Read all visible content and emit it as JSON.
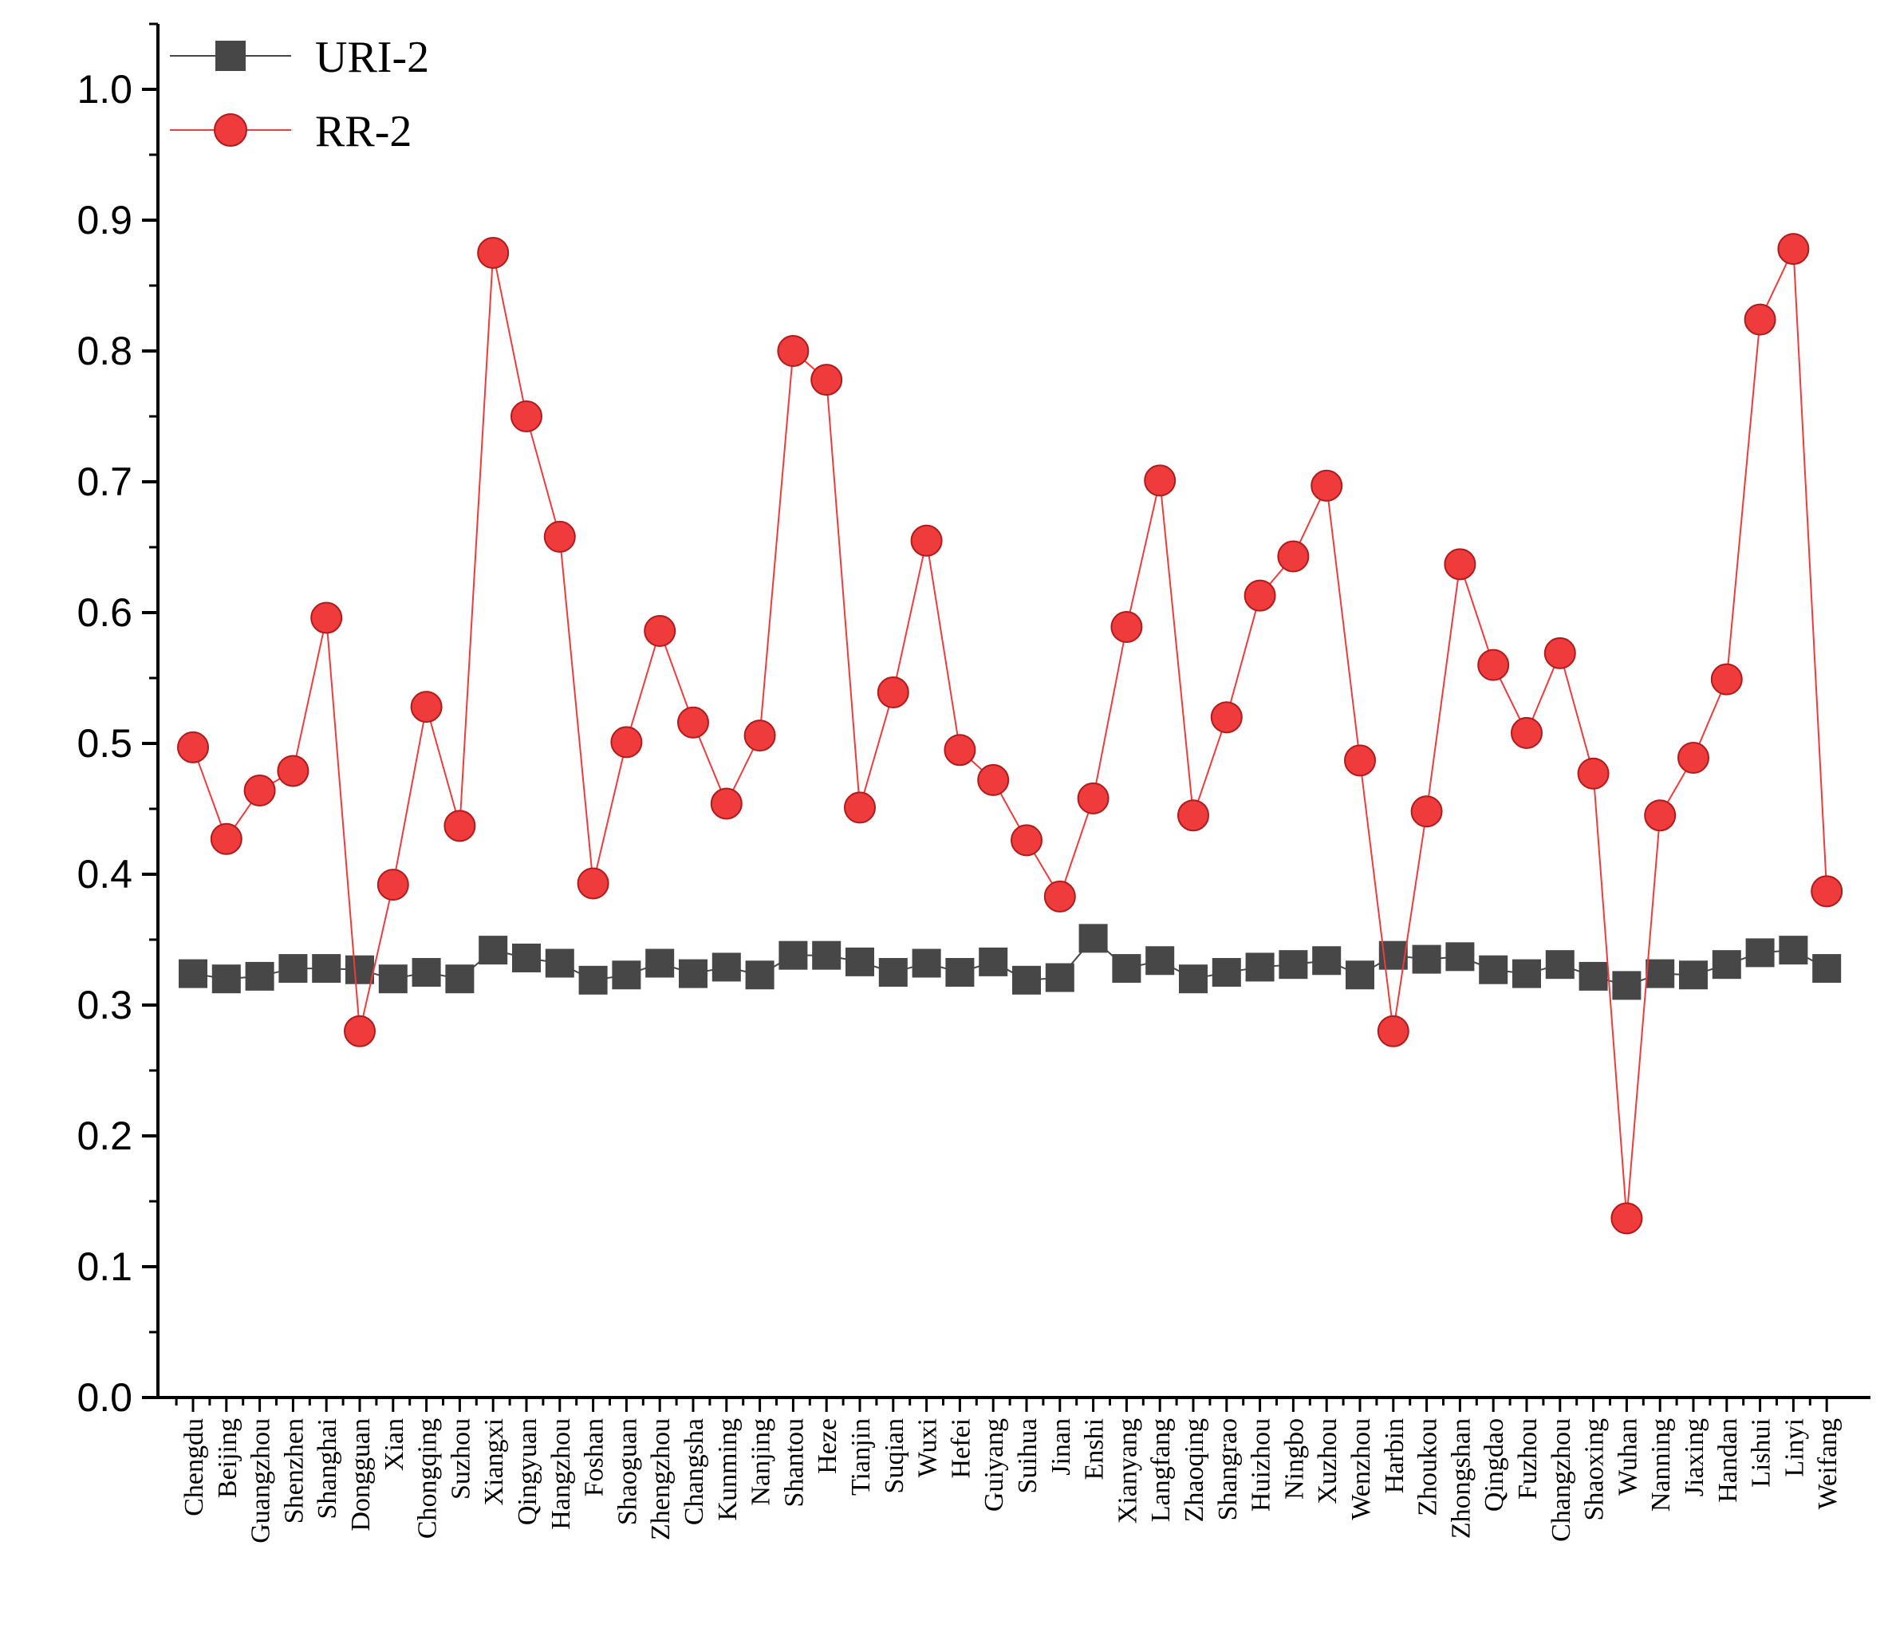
{
  "chart_data": {
    "type": "line",
    "title": "",
    "xlabel": "",
    "ylabel": "",
    "ylim": [
      0,
      1.05
    ],
    "yticks": [
      "0.0",
      "0.1",
      "0.2",
      "0.3",
      "0.4",
      "0.5",
      "0.6",
      "0.7",
      "0.8",
      "0.9",
      "1.0"
    ],
    "legend_position": "top-left",
    "categories": [
      "Chengdu",
      "Beijing",
      "Guangzhou",
      "Shenzhen",
      "Shanghai",
      "Dongguan",
      "Xian",
      "Chongqing",
      "Suzhou",
      "Xiangxi",
      "Qingyuan",
      "Hangzhou",
      "Foshan",
      "Shaoguan",
      "Zhengzhou",
      "Changsha",
      "Kunming",
      "Nanjing",
      "Shantou",
      "Heze",
      "Tianjin",
      "Suqian",
      "Wuxi",
      "Hefei",
      "Guiyang",
      "Suihua",
      "Jinan",
      "Enshi",
      "Xianyang",
      "Langfang",
      "Zhaoqing",
      "Shangrao",
      "Huizhou",
      "Ningbo",
      "Xuzhou",
      "Wenzhou",
      "Harbin",
      "Zhoukou",
      "Zhongshan",
      "Qingdao",
      "Fuzhou",
      "Changzhou",
      "Shaoxing",
      "Wuhan",
      "Nanning",
      "Jiaxing",
      "Handan",
      "Lishui",
      "Linyi",
      "Weifang"
    ],
    "series": [
      {
        "name": "URI-2",
        "marker": "square",
        "color": "#474747",
        "values": [
          0.324,
          0.32,
          0.322,
          0.328,
          0.328,
          0.327,
          0.32,
          0.325,
          0.32,
          0.342,
          0.336,
          0.332,
          0.319,
          0.323,
          0.332,
          0.324,
          0.329,
          0.323,
          0.338,
          0.338,
          0.333,
          0.325,
          0.332,
          0.325,
          0.333,
          0.319,
          0.321,
          0.351,
          0.328,
          0.334,
          0.32,
          0.325,
          0.329,
          0.331,
          0.334,
          0.323,
          0.338,
          0.335,
          0.337,
          0.327,
          0.324,
          0.331,
          0.322,
          0.315,
          0.324,
          0.323,
          0.331,
          0.34,
          0.342,
          0.328
        ]
      },
      {
        "name": "RR-2",
        "marker": "circle",
        "color": "#ef3b3b",
        "values": [
          0.497,
          0.427,
          0.464,
          0.479,
          0.596,
          0.28,
          0.392,
          0.528,
          0.437,
          0.875,
          0.75,
          0.658,
          0.393,
          0.501,
          0.586,
          0.516,
          0.454,
          0.506,
          0.8,
          0.778,
          0.451,
          0.539,
          0.655,
          0.495,
          0.472,
          0.426,
          0.383,
          0.458,
          0.589,
          0.701,
          0.445,
          0.52,
          0.613,
          0.643,
          0.697,
          0.487,
          0.28,
          0.448,
          0.637,
          0.56,
          0.508,
          0.569,
          0.477,
          0.137,
          0.445,
          0.489,
          0.549,
          0.824,
          0.878,
          0.387
        ]
      }
    ]
  }
}
